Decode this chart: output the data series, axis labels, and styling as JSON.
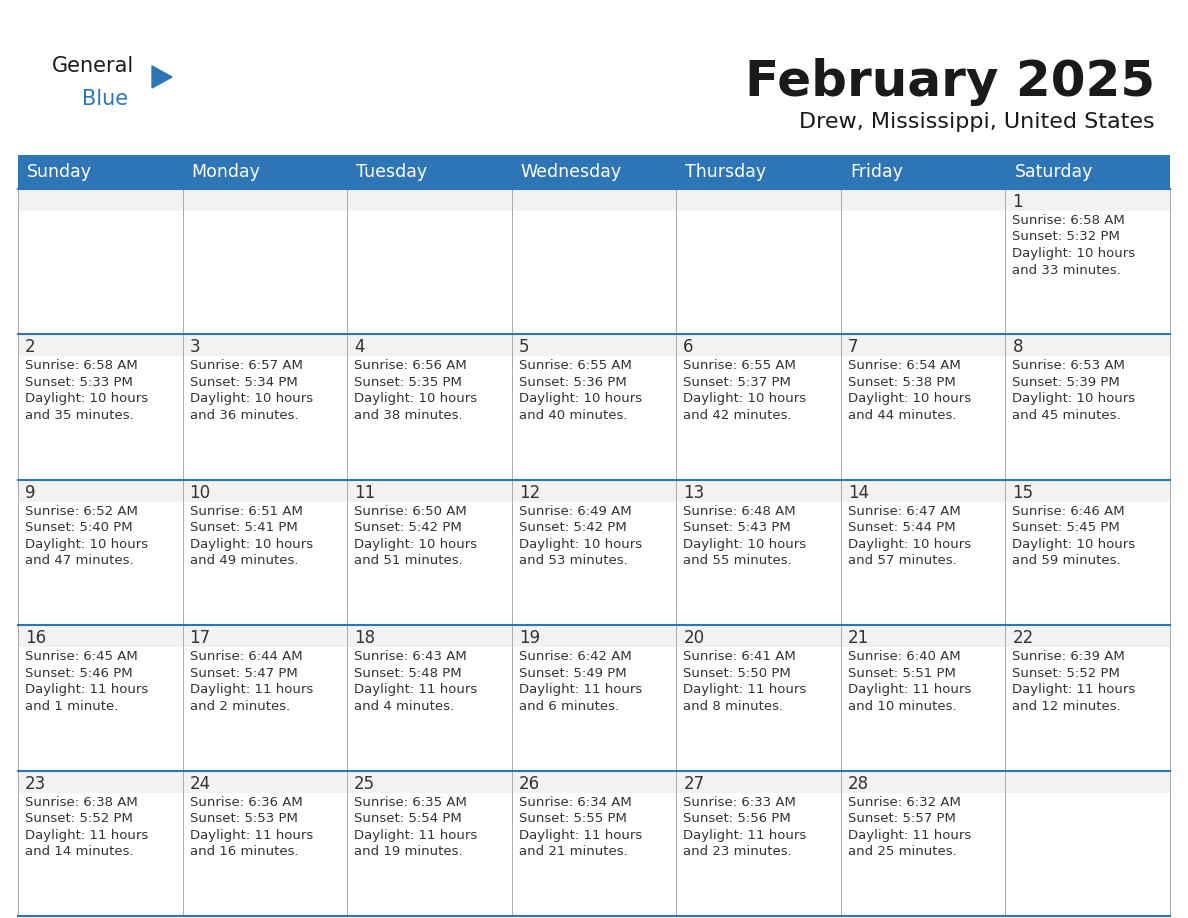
{
  "title": "February 2025",
  "subtitle": "Drew, Mississippi, United States",
  "header_bg": "#2E75B6",
  "header_text_color": "#FFFFFF",
  "cell_bg_alt": "#F2F2F2",
  "cell_bg_main": "#FFFFFF",
  "cell_border_color": "#AAAAAA",
  "week_border_color": "#2E75B6",
  "day_num_color": "#333333",
  "cell_text_color": "#333333",
  "days_of_week": [
    "Sunday",
    "Monday",
    "Tuesday",
    "Wednesday",
    "Thursday",
    "Friday",
    "Saturday"
  ],
  "logo_general_color": "#1a1a1a",
  "logo_blue_color": "#2E75B6",
  "calendar_data": [
    [
      null,
      null,
      null,
      null,
      null,
      null,
      {
        "day": 1,
        "sunrise": "6:58 AM",
        "sunset": "5:32 PM",
        "daylight_l1": "Daylight: 10 hours",
        "daylight_l2": "and 33 minutes."
      }
    ],
    [
      {
        "day": 2,
        "sunrise": "6:58 AM",
        "sunset": "5:33 PM",
        "daylight_l1": "Daylight: 10 hours",
        "daylight_l2": "and 35 minutes."
      },
      {
        "day": 3,
        "sunrise": "6:57 AM",
        "sunset": "5:34 PM",
        "daylight_l1": "Daylight: 10 hours",
        "daylight_l2": "and 36 minutes."
      },
      {
        "day": 4,
        "sunrise": "6:56 AM",
        "sunset": "5:35 PM",
        "daylight_l1": "Daylight: 10 hours",
        "daylight_l2": "and 38 minutes."
      },
      {
        "day": 5,
        "sunrise": "6:55 AM",
        "sunset": "5:36 PM",
        "daylight_l1": "Daylight: 10 hours",
        "daylight_l2": "and 40 minutes."
      },
      {
        "day": 6,
        "sunrise": "6:55 AM",
        "sunset": "5:37 PM",
        "daylight_l1": "Daylight: 10 hours",
        "daylight_l2": "and 42 minutes."
      },
      {
        "day": 7,
        "sunrise": "6:54 AM",
        "sunset": "5:38 PM",
        "daylight_l1": "Daylight: 10 hours",
        "daylight_l2": "and 44 minutes."
      },
      {
        "day": 8,
        "sunrise": "6:53 AM",
        "sunset": "5:39 PM",
        "daylight_l1": "Daylight: 10 hours",
        "daylight_l2": "and 45 minutes."
      }
    ],
    [
      {
        "day": 9,
        "sunrise": "6:52 AM",
        "sunset": "5:40 PM",
        "daylight_l1": "Daylight: 10 hours",
        "daylight_l2": "and 47 minutes."
      },
      {
        "day": 10,
        "sunrise": "6:51 AM",
        "sunset": "5:41 PM",
        "daylight_l1": "Daylight: 10 hours",
        "daylight_l2": "and 49 minutes."
      },
      {
        "day": 11,
        "sunrise": "6:50 AM",
        "sunset": "5:42 PM",
        "daylight_l1": "Daylight: 10 hours",
        "daylight_l2": "and 51 minutes."
      },
      {
        "day": 12,
        "sunrise": "6:49 AM",
        "sunset": "5:42 PM",
        "daylight_l1": "Daylight: 10 hours",
        "daylight_l2": "and 53 minutes."
      },
      {
        "day": 13,
        "sunrise": "6:48 AM",
        "sunset": "5:43 PM",
        "daylight_l1": "Daylight: 10 hours",
        "daylight_l2": "and 55 minutes."
      },
      {
        "day": 14,
        "sunrise": "6:47 AM",
        "sunset": "5:44 PM",
        "daylight_l1": "Daylight: 10 hours",
        "daylight_l2": "and 57 minutes."
      },
      {
        "day": 15,
        "sunrise": "6:46 AM",
        "sunset": "5:45 PM",
        "daylight_l1": "Daylight: 10 hours",
        "daylight_l2": "and 59 minutes."
      }
    ],
    [
      {
        "day": 16,
        "sunrise": "6:45 AM",
        "sunset": "5:46 PM",
        "daylight_l1": "Daylight: 11 hours",
        "daylight_l2": "and 1 minute."
      },
      {
        "day": 17,
        "sunrise": "6:44 AM",
        "sunset": "5:47 PM",
        "daylight_l1": "Daylight: 11 hours",
        "daylight_l2": "and 2 minutes."
      },
      {
        "day": 18,
        "sunrise": "6:43 AM",
        "sunset": "5:48 PM",
        "daylight_l1": "Daylight: 11 hours",
        "daylight_l2": "and 4 minutes."
      },
      {
        "day": 19,
        "sunrise": "6:42 AM",
        "sunset": "5:49 PM",
        "daylight_l1": "Daylight: 11 hours",
        "daylight_l2": "and 6 minutes."
      },
      {
        "day": 20,
        "sunrise": "6:41 AM",
        "sunset": "5:50 PM",
        "daylight_l1": "Daylight: 11 hours",
        "daylight_l2": "and 8 minutes."
      },
      {
        "day": 21,
        "sunrise": "6:40 AM",
        "sunset": "5:51 PM",
        "daylight_l1": "Daylight: 11 hours",
        "daylight_l2": "and 10 minutes."
      },
      {
        "day": 22,
        "sunrise": "6:39 AM",
        "sunset": "5:52 PM",
        "daylight_l1": "Daylight: 11 hours",
        "daylight_l2": "and 12 minutes."
      }
    ],
    [
      {
        "day": 23,
        "sunrise": "6:38 AM",
        "sunset": "5:52 PM",
        "daylight_l1": "Daylight: 11 hours",
        "daylight_l2": "and 14 minutes."
      },
      {
        "day": 24,
        "sunrise": "6:36 AM",
        "sunset": "5:53 PM",
        "daylight_l1": "Daylight: 11 hours",
        "daylight_l2": "and 16 minutes."
      },
      {
        "day": 25,
        "sunrise": "6:35 AM",
        "sunset": "5:54 PM",
        "daylight_l1": "Daylight: 11 hours",
        "daylight_l2": "and 19 minutes."
      },
      {
        "day": 26,
        "sunrise": "6:34 AM",
        "sunset": "5:55 PM",
        "daylight_l1": "Daylight: 11 hours",
        "daylight_l2": "and 21 minutes."
      },
      {
        "day": 27,
        "sunrise": "6:33 AM",
        "sunset": "5:56 PM",
        "daylight_l1": "Daylight: 11 hours",
        "daylight_l2": "and 23 minutes."
      },
      {
        "day": 28,
        "sunrise": "6:32 AM",
        "sunset": "5:57 PM",
        "daylight_l1": "Daylight: 11 hours",
        "daylight_l2": "and 25 minutes."
      },
      null
    ]
  ]
}
